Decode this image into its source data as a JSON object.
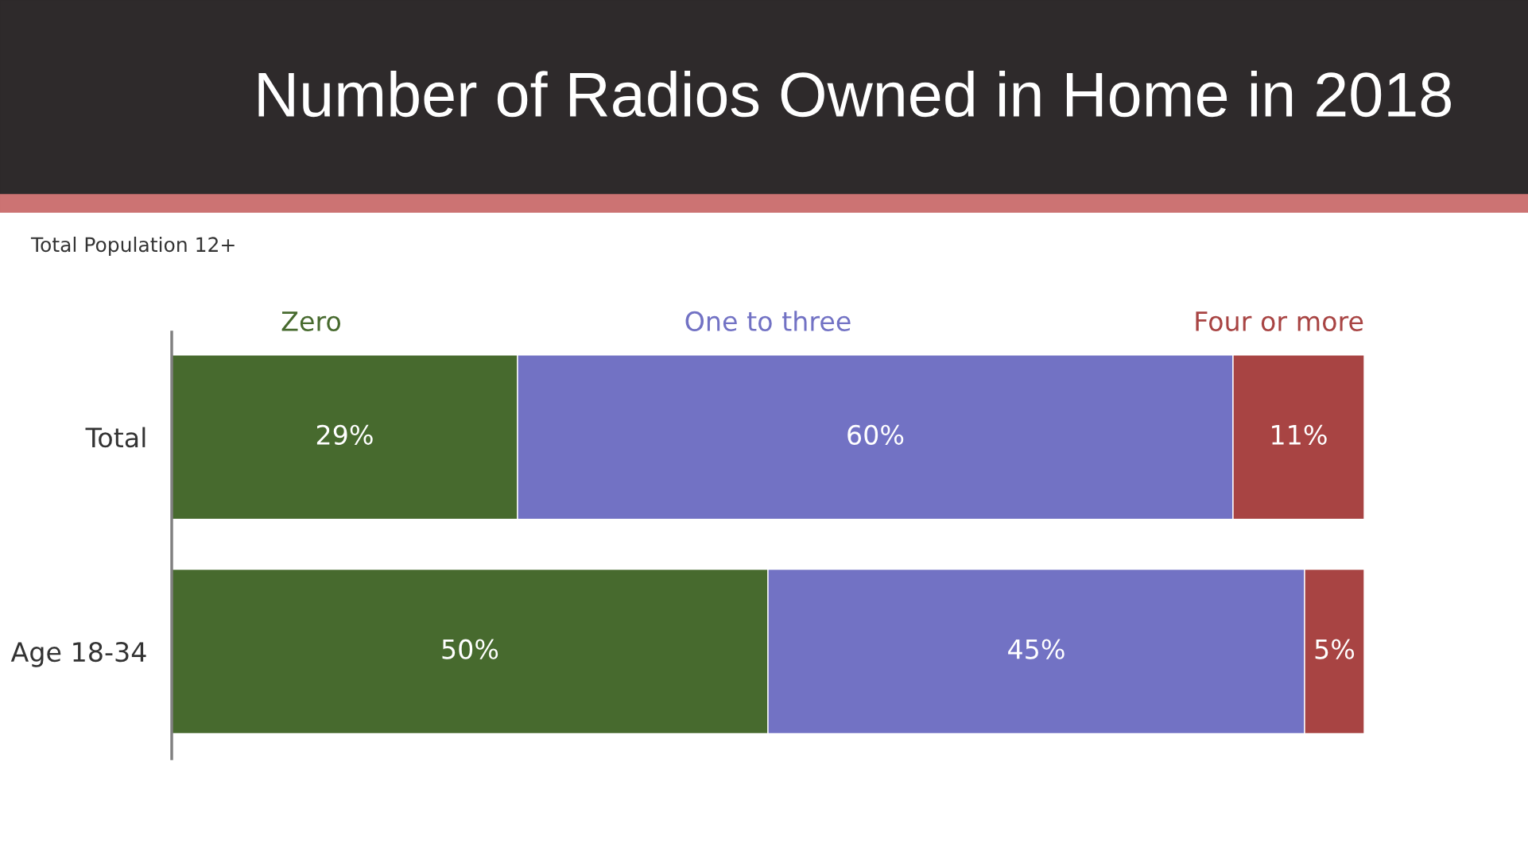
{
  "chart_data": {
    "type": "bar",
    "orientation": "horizontal",
    "stacked": true,
    "title": "Number of Radios Owned in Home in 2018",
    "subtitle": "Total Population 12+",
    "categories": [
      "Total",
      "Age 18-34"
    ],
    "series": [
      {
        "name": "Zero",
        "color": "#476a2e",
        "values": [
          29,
          50
        ],
        "value_labels": [
          "29%",
          "50%"
        ]
      },
      {
        "name": "One to three",
        "color": "#7272c4",
        "values": [
          60,
          45
        ],
        "value_labels": [
          "60%",
          "45%"
        ]
      },
      {
        "name": "Four or more",
        "color": "#a84443",
        "values": [
          11,
          5
        ],
        "value_labels": [
          "11%",
          "5%"
        ]
      }
    ],
    "legend": "top",
    "tick_labels": "y"
  }
}
